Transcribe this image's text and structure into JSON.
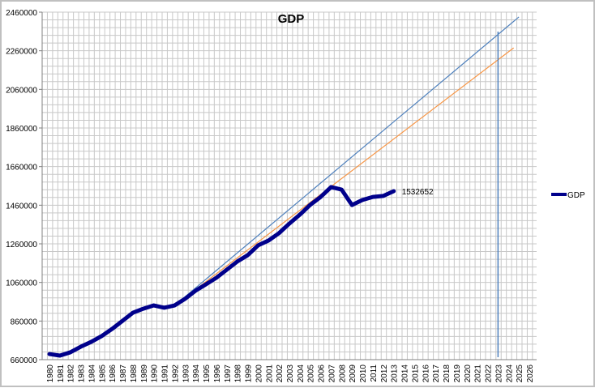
{
  "chart_data": {
    "type": "line",
    "title": "GDP",
    "xlabel": "",
    "ylabel": "",
    "ylim": [
      660000,
      2460000
    ],
    "y_ticks": [
      660000,
      860000,
      1060000,
      1260000,
      1460000,
      1660000,
      1860000,
      2060000,
      2260000,
      2460000
    ],
    "x_ticks": [
      "1980",
      "1981",
      "1982",
      "1983",
      "1984",
      "1985",
      "1986",
      "1987",
      "1988",
      "1989",
      "1990",
      "1991",
      "1992",
      "1993",
      "1994",
      "1995",
      "1996",
      "1997",
      "1998",
      "1999",
      "2000",
      "2001",
      "2002",
      "2003",
      "2004",
      "2005",
      "2006",
      "2007",
      "2008",
      "2009",
      "2010",
      "2011",
      "2012",
      "2013",
      "2014",
      "2015",
      "2016",
      "2017",
      "2018",
      "2019",
      "2020",
      "2021",
      "2022",
      "2023",
      "2024",
      "2025",
      "2026"
    ],
    "grid": true,
    "legend_position": "right",
    "series": [
      {
        "name": "GDP",
        "color": "#00008b",
        "x": [
          1980,
          1981,
          1982,
          1983,
          1984,
          1985,
          1986,
          1987,
          1988,
          1989,
          1990,
          1991,
          1992,
          1993,
          1994,
          1995,
          1996,
          1997,
          1998,
          1999,
          2000,
          2001,
          2002,
          2003,
          2004,
          2005,
          2006,
          2007,
          2008,
          2009,
          2010,
          2011,
          2012,
          2013
        ],
        "values": [
          689000,
          681000,
          698000,
          727000,
          752000,
          782000,
          819000,
          861000,
          903000,
          924000,
          941000,
          929000,
          941000,
          975000,
          1017000,
          1050000,
          1084000,
          1126000,
          1168000,
          1201000,
          1252000,
          1277000,
          1315000,
          1365000,
          1411000,
          1462000,
          1503000,
          1554000,
          1541000,
          1461000,
          1487000,
          1503000,
          1508000,
          1532652
        ]
      },
      {
        "name": "Trend (blue)",
        "color": "#4f81bd",
        "x": [
          1992,
          2025
        ],
        "values": [
          941000,
          2435000
        ]
      },
      {
        "name": "Trend (orange)",
        "color": "#f79646",
        "x": [
          1992,
          2024.5
        ],
        "values": [
          941000,
          2275000
        ]
      }
    ],
    "annotations": [
      {
        "text": "1532652",
        "x": 2013,
        "y": 1532652
      },
      {
        "type": "vertical-line",
        "x": 2023,
        "color": "#4f81bd"
      }
    ]
  },
  "chart": {
    "title": "GDP",
    "data_label": "1532652",
    "legend": {
      "label": "GDP",
      "color": "#00008b"
    }
  }
}
